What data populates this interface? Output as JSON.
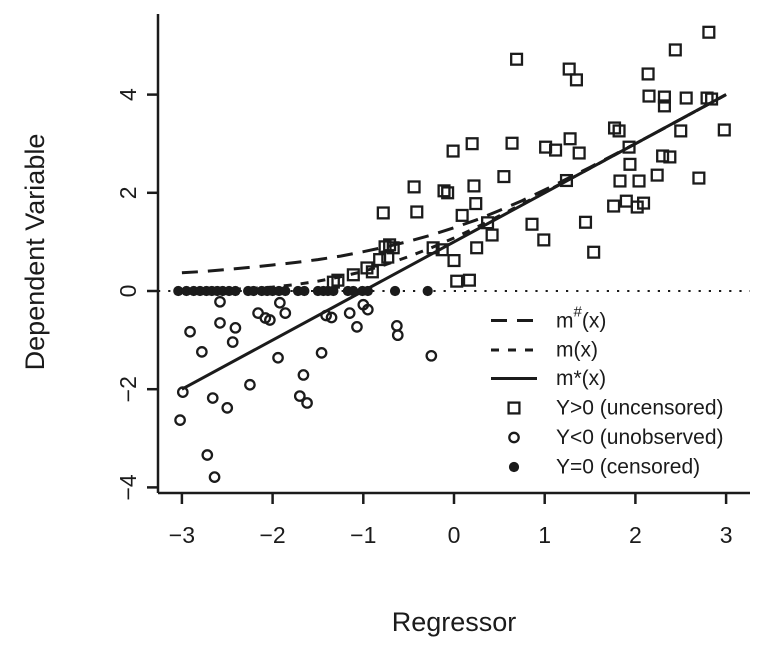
{
  "figure": {
    "background": "#ffffff",
    "ink_color": "#1b1b1b"
  },
  "chart_data": {
    "type": "scatter",
    "title": "",
    "xlabel": "Regressor",
    "ylabel": "Dependent Variable",
    "xlim": [
      -3.26,
      3.26
    ],
    "ylim": [
      -4.11,
      5.64
    ],
    "grid": false,
    "x_ticks": [
      -3,
      -2,
      -1,
      0,
      1,
      2,
      3
    ],
    "x_tick_labels": [
      "−3",
      "−2",
      "−1",
      "0",
      "1",
      "2",
      "3"
    ],
    "y_ticks": [
      -4,
      -2,
      0,
      2,
      4
    ],
    "y_tick_labels": [
      "−4",
      "−2",
      "0",
      "2",
      "4"
    ],
    "zero_line": {
      "name": "censoring-threshold",
      "style": "dotted",
      "y": 0,
      "x_from": -3.26,
      "x_to": 3.26
    },
    "series": [
      {
        "name": "m#(x)",
        "type": "line",
        "style": "longdash",
        "points": [
          [
            -3,
            0.37
          ],
          [
            -2.75,
            0.4
          ],
          [
            -2.5,
            0.44
          ],
          [
            -2.25,
            0.48
          ],
          [
            -2,
            0.53
          ],
          [
            -1.75,
            0.58
          ],
          [
            -1.5,
            0.64
          ],
          [
            -1.25,
            0.71
          ],
          [
            -1,
            0.8
          ],
          [
            -0.75,
            0.9
          ],
          [
            -0.5,
            1.01
          ],
          [
            -0.25,
            1.14
          ],
          [
            0,
            1.29
          ],
          [
            0.25,
            1.45
          ],
          [
            0.5,
            1.64
          ],
          [
            0.75,
            1.84
          ],
          [
            1,
            2.06
          ],
          [
            1.5,
            2.52
          ],
          [
            2,
            3.0
          ],
          [
            2.5,
            3.5
          ],
          [
            3,
            4.0
          ]
        ]
      },
      {
        "name": "m(x)",
        "type": "line",
        "style": "shortdash",
        "points": [
          [
            -3,
            0.01
          ],
          [
            -2.75,
            0.02
          ],
          [
            -2.5,
            0.03
          ],
          [
            -2.25,
            0.05
          ],
          [
            -2,
            0.08
          ],
          [
            -1.75,
            0.13
          ],
          [
            -1.5,
            0.2
          ],
          [
            -1.25,
            0.29
          ],
          [
            -1,
            0.4
          ],
          [
            -0.75,
            0.54
          ],
          [
            -0.5,
            0.7
          ],
          [
            -0.25,
            0.88
          ],
          [
            0,
            1.08
          ],
          [
            0.25,
            1.3
          ],
          [
            0.5,
            1.53
          ],
          [
            0.75,
            1.77
          ],
          [
            1,
            2.01
          ],
          [
            1.5,
            2.5
          ],
          [
            2,
            3.0
          ],
          [
            2.5,
            3.5
          ],
          [
            3,
            4.0
          ]
        ]
      },
      {
        "name": "m*(x)",
        "type": "line",
        "style": "solid",
        "points": [
          [
            -3,
            -2
          ],
          [
            3,
            4
          ]
        ]
      },
      {
        "name": "Y>0 (uncensored)",
        "type": "scatter",
        "marker": "open-square",
        "points": [
          [
            2.81,
            5.27
          ],
          [
            2.44,
            4.91
          ],
          [
            0.69,
            4.72
          ],
          [
            1.27,
            4.52
          ],
          [
            1.35,
            4.3
          ],
          [
            2.14,
            4.42
          ],
          [
            2.15,
            3.97
          ],
          [
            2.32,
            3.95
          ],
          [
            2.32,
            3.77
          ],
          [
            2.56,
            3.93
          ],
          [
            2.79,
            3.93
          ],
          [
            2.84,
            3.91
          ],
          [
            1.77,
            3.32
          ],
          [
            1.82,
            3.26
          ],
          [
            2.5,
            3.26
          ],
          [
            2.98,
            3.28
          ],
          [
            -0.01,
            2.85
          ],
          [
            0.2,
            3.0
          ],
          [
            0.64,
            3.01
          ],
          [
            1.01,
            2.93
          ],
          [
            1.12,
            2.87
          ],
          [
            1.28,
            3.1
          ],
          [
            1.38,
            2.81
          ],
          [
            1.93,
            2.93
          ],
          [
            1.94,
            2.58
          ],
          [
            2.3,
            2.75
          ],
          [
            2.38,
            2.73
          ],
          [
            -0.44,
            2.12
          ],
          [
            -0.11,
            2.04
          ],
          [
            -0.07,
            2.0
          ],
          [
            0.22,
            2.14
          ],
          [
            0.55,
            2.33
          ],
          [
            1.24,
            2.25
          ],
          [
            1.83,
            2.24
          ],
          [
            2.04,
            2.24
          ],
          [
            2.24,
            2.36
          ],
          [
            2.7,
            2.3
          ],
          [
            -0.78,
            1.59
          ],
          [
            -0.41,
            1.61
          ],
          [
            0.09,
            1.54
          ],
          [
            0.24,
            1.78
          ],
          [
            0.37,
            1.39
          ],
          [
            0.86,
            1.36
          ],
          [
            1.45,
            1.4
          ],
          [
            1.76,
            1.73
          ],
          [
            1.9,
            1.83
          ],
          [
            2.02,
            1.71
          ],
          [
            2.09,
            1.79
          ],
          [
            0.42,
            1.14
          ],
          [
            0.99,
            1.04
          ],
          [
            -0.76,
            0.9
          ],
          [
            -0.71,
            0.94
          ],
          [
            -0.67,
            0.88
          ],
          [
            -0.73,
            0.69
          ],
          [
            -0.82,
            0.64
          ],
          [
            -0.96,
            0.47
          ],
          [
            -0.9,
            0.39
          ],
          [
            -1.11,
            0.33
          ],
          [
            -1.28,
            0.22
          ],
          [
            -1.33,
            0.18
          ],
          [
            -0.23,
            0.88
          ],
          [
            -0.13,
            0.84
          ],
          [
            0.0,
            0.62
          ],
          [
            0.25,
            0.88
          ],
          [
            1.54,
            0.79
          ],
          [
            0.03,
            0.2
          ],
          [
            0.17,
            0.22
          ]
        ]
      },
      {
        "name": "Y<0 (unobserved)",
        "type": "scatter",
        "marker": "open-circle",
        "points": [
          [
            -3.02,
            -2.63
          ],
          [
            -2.99,
            -2.06
          ],
          [
            -2.91,
            -0.83
          ],
          [
            -2.78,
            -1.24
          ],
          [
            -2.72,
            -3.34
          ],
          [
            -2.66,
            -2.18
          ],
          [
            -2.64,
            -3.79
          ],
          [
            -2.58,
            -0.22
          ],
          [
            -2.58,
            -0.65
          ],
          [
            -2.5,
            -2.38
          ],
          [
            -2.44,
            -1.04
          ],
          [
            -2.41,
            -0.75
          ],
          [
            -2.25,
            -1.91
          ],
          [
            -2.16,
            -0.45
          ],
          [
            -2.08,
            -0.55
          ],
          [
            -2.03,
            -0.59
          ],
          [
            -1.94,
            -1.36
          ],
          [
            -1.92,
            -0.24
          ],
          [
            -1.86,
            -0.45
          ],
          [
            -1.7,
            -2.14
          ],
          [
            -1.66,
            -1.71
          ],
          [
            -1.62,
            -2.28
          ],
          [
            -1.46,
            -1.26
          ],
          [
            -1.41,
            -0.5
          ],
          [
            -1.35,
            -0.54
          ],
          [
            -1.15,
            -0.45
          ],
          [
            -1.07,
            -0.73
          ],
          [
            -1.0,
            -0.28
          ],
          [
            -0.95,
            -0.38
          ],
          [
            -0.63,
            -0.71
          ],
          [
            -0.62,
            -0.9
          ],
          [
            -0.25,
            -1.32
          ]
        ]
      },
      {
        "name": "Y=0 (censored)",
        "type": "scatter",
        "marker": "filled-circle",
        "points": [
          [
            -3.04,
            0
          ],
          [
            -2.95,
            0
          ],
          [
            -2.87,
            0
          ],
          [
            -2.8,
            0
          ],
          [
            -2.73,
            0
          ],
          [
            -2.67,
            0
          ],
          [
            -2.61,
            0
          ],
          [
            -2.55,
            0
          ],
          [
            -2.48,
            0
          ],
          [
            -2.41,
            0
          ],
          [
            -2.27,
            0
          ],
          [
            -2.21,
            0
          ],
          [
            -2.12,
            0
          ],
          [
            -2.06,
            0
          ],
          [
            -2.0,
            0
          ],
          [
            -1.93,
            0
          ],
          [
            -1.86,
            0
          ],
          [
            -1.72,
            0
          ],
          [
            -1.65,
            0
          ],
          [
            -1.5,
            0
          ],
          [
            -1.44,
            0
          ],
          [
            -1.39,
            0
          ],
          [
            -1.33,
            0
          ],
          [
            -1.17,
            0
          ],
          [
            -1.11,
            0
          ],
          [
            -1.01,
            0
          ],
          [
            -0.95,
            0
          ],
          [
            -0.65,
            0
          ],
          [
            -0.29,
            0
          ]
        ]
      }
    ],
    "legend": {
      "position": "right-middle",
      "box": false,
      "items": [
        {
          "sample": "line-longdash",
          "label": "m#(x)",
          "label_pre": "m",
          "label_sup": "#",
          "label_post": "(x)"
        },
        {
          "sample": "line-shortdash",
          "label": "m(x)"
        },
        {
          "sample": "line-solid",
          "label": "m*(x)"
        },
        {
          "sample": "open-square",
          "label": "Y>0 (uncensored)"
        },
        {
          "sample": "open-circle",
          "label": "Y<0 (unobserved)"
        },
        {
          "sample": "filled-circle",
          "label": "Y=0 (censored)"
        }
      ]
    }
  }
}
